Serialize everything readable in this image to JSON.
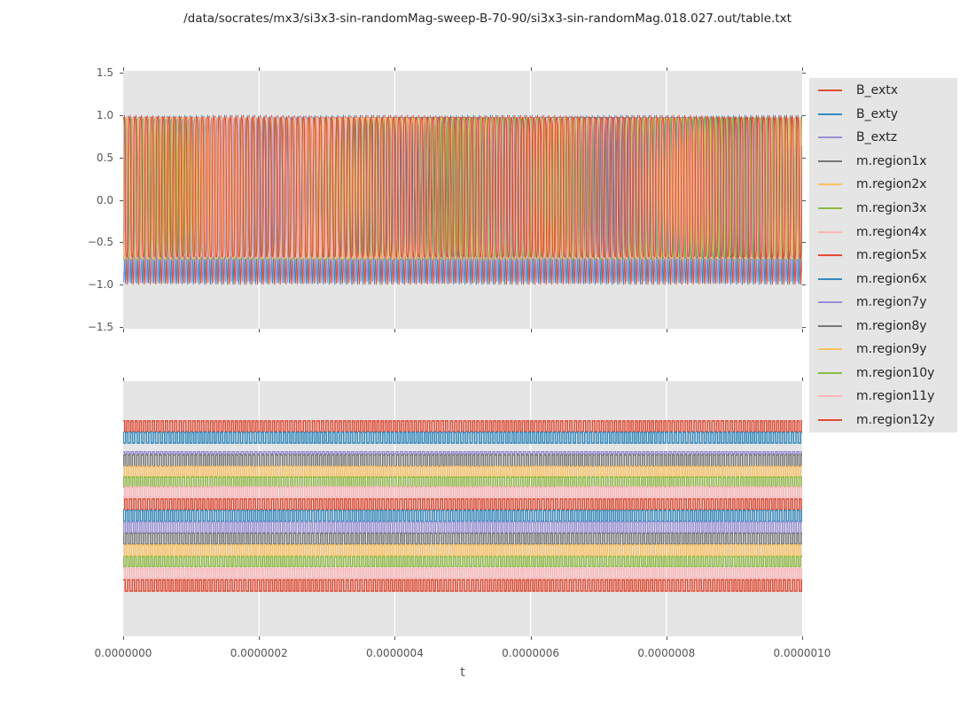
{
  "title": "/data/socrates/mx3/si3x3-sin-randomMag-sweep-B-70-90/si3x3-sin-randomMag.018.027.out/table.txt",
  "colors": {
    "figure_bg": "#FFFFFF",
    "axes_bg": "#E5E5E5",
    "grid": "#FFFFFF",
    "tick": "#555555",
    "text": "#262626",
    "palette": [
      "#E24A33",
      "#348ABD",
      "#988ED5",
      "#777777",
      "#FBC15E",
      "#8EBA42",
      "#FFB5B8"
    ]
  },
  "legend": {
    "position": "upper-right-outside",
    "entries": [
      {
        "label": "B_extx",
        "color": "#E24A33"
      },
      {
        "label": "B_exty",
        "color": "#348ABD"
      },
      {
        "label": "B_extz",
        "color": "#988ED5"
      },
      {
        "label": "m.region1x",
        "color": "#777777"
      },
      {
        "label": "m.region2x",
        "color": "#FBC15E"
      },
      {
        "label": "m.region3x",
        "color": "#8EBA42"
      },
      {
        "label": "m.region4x",
        "color": "#FFB5B8"
      },
      {
        "label": "m.region5x",
        "color": "#E24A33"
      },
      {
        "label": "m.region6x",
        "color": "#348ABD"
      },
      {
        "label": "m.region7y",
        "color": "#988ED5"
      },
      {
        "label": "m.region8y",
        "color": "#777777"
      },
      {
        "label": "m.region9y",
        "color": "#FBC15E"
      },
      {
        "label": "m.region10y",
        "color": "#8EBA42"
      },
      {
        "label": "m.region11y",
        "color": "#FFB5B8"
      },
      {
        "label": "m.region12y",
        "color": "#E24A33"
      }
    ]
  },
  "chart_data": [
    {
      "type": "line",
      "subplot": "top",
      "xlabel": "",
      "ylabel": "",
      "xlim": [
        0,
        1e-06
      ],
      "ylim": [
        -1.525,
        1.525
      ],
      "grid": "vertical-only",
      "yticks": {
        "values": [
          1.5,
          1.0,
          0.5,
          0.0,
          -0.5,
          -1.0,
          -1.5
        ],
        "labels": [
          "1.5",
          "1.0",
          "0.5",
          "0.0",
          "−0.5",
          "−1.0",
          "−1.5"
        ]
      },
      "description": "15 overlapping oscillations vs t over 0..1e-6 s; B_ext traces are sines of amplitude 1.0, m.region traces are squared-off sines spanning about -0.68..0.97; freq is cycles per full x-range",
      "series": [
        {
          "name": "B_extx",
          "color": "#E24A33",
          "shape": "sine",
          "freq": 120.0,
          "phase": 0.0,
          "amp": 1.0,
          "offset": 0.0
        },
        {
          "name": "B_exty",
          "color": "#348ABD",
          "shape": "sine",
          "freq": 120.0,
          "phase": 2.09,
          "amp": 1.0,
          "offset": 0.0
        },
        {
          "name": "B_extz",
          "color": "#988ED5",
          "shape": "sine",
          "freq": 120.0,
          "phase": 4.19,
          "amp": 0.98,
          "offset": 0.0
        },
        {
          "name": "m.region1x",
          "color": "#777777",
          "shape": "squash",
          "freq": 119.2,
          "phase": 0.7,
          "amp": 0.83,
          "offset": 0.145
        },
        {
          "name": "m.region2x",
          "color": "#FBC15E",
          "shape": "squash",
          "freq": 121.1,
          "phase": 3.9,
          "amp": 0.82,
          "offset": 0.15
        },
        {
          "name": "m.region3x",
          "color": "#8EBA42",
          "shape": "squash",
          "freq": 118.6,
          "phase": 1.6,
          "amp": 0.84,
          "offset": 0.13
        },
        {
          "name": "m.region4x",
          "color": "#FFB5B8",
          "shape": "squash",
          "freq": 120.7,
          "phase": 5.2,
          "amp": 0.815,
          "offset": 0.155
        },
        {
          "name": "m.region5x",
          "color": "#E24A33",
          "shape": "squash",
          "freq": 119.6,
          "phase": 2.8,
          "amp": 0.835,
          "offset": 0.14
        },
        {
          "name": "m.region6x",
          "color": "#348ABD",
          "shape": "squash",
          "freq": 121.5,
          "phase": 0.3,
          "amp": 0.825,
          "offset": 0.145
        },
        {
          "name": "m.region7y",
          "color": "#988ED5",
          "shape": "squash",
          "freq": 118.9,
          "phase": 4.6,
          "amp": 0.83,
          "offset": 0.125
        },
        {
          "name": "m.region8y",
          "color": "#777777",
          "shape": "squash",
          "freq": 120.3,
          "phase": 1.1,
          "amp": 0.82,
          "offset": 0.15
        },
        {
          "name": "m.region9y",
          "color": "#FBC15E",
          "shape": "squash",
          "freq": 119.0,
          "phase": 3.3,
          "amp": 0.835,
          "offset": 0.135
        },
        {
          "name": "m.region10y",
          "color": "#8EBA42",
          "shape": "squash",
          "freq": 121.8,
          "phase": 5.8,
          "amp": 0.82,
          "offset": 0.145
        },
        {
          "name": "m.region11y",
          "color": "#FFB5B8",
          "shape": "squash",
          "freq": 118.4,
          "phase": 2.2,
          "amp": 0.83,
          "offset": 0.14
        },
        {
          "name": "m.region12y",
          "color": "#E24A33",
          "shape": "squash",
          "freq": 120.9,
          "phase": 0.9,
          "amp": 0.825,
          "offset": 0.15
        }
      ]
    },
    {
      "type": "line",
      "subplot": "bottom",
      "xlabel": "t",
      "ylabel": "",
      "xlim": [
        0,
        1e-06
      ],
      "grid": "vertical-only",
      "xticks": {
        "values": [
          0.0,
          2e-07,
          4e-07,
          6e-07,
          8e-07,
          1e-06
        ],
        "labels": [
          "0.0000000",
          "0.0000002",
          "0.0000004",
          "0.0000006",
          "0.0000008",
          "0.0000010"
        ]
      },
      "description": "15 stacked square-wave pulse trains vs t; hi/lo are fractions of plot height measured from the top edge; freq is cycles per full x-range; phase-modulation terms create irregular pulse widths",
      "series": [
        {
          "name": "B_extx",
          "color": "#E24A33",
          "hi": 0.156,
          "lo": 0.198,
          "freq": 158.0,
          "phase": 0.0,
          "modf": 5.1,
          "modphase": 0.5
        },
        {
          "name": "B_exty",
          "color": "#348ABD",
          "hi": 0.201,
          "lo": 0.243,
          "freq": 157.2,
          "phase": 1.3,
          "modf": 6.2,
          "modphase": 2.0
        },
        {
          "name": "B_extz",
          "color": "#988ED5",
          "hi": 0.277,
          "lo": 0.285,
          "freq": 158.6,
          "phase": 2.6,
          "modf": 4.7,
          "modphase": 4.1
        },
        {
          "name": "m.region1x",
          "color": "#777777",
          "hi": 0.289,
          "lo": 0.333,
          "freq": 157.7,
          "phase": 3.9,
          "modf": 5.8,
          "modphase": 1.2
        },
        {
          "name": "m.region2x",
          "color": "#FBC15E",
          "hi": 0.334,
          "lo": 0.375,
          "freq": 158.9,
          "phase": 5.1,
          "modf": 4.3,
          "modphase": 3.3
        },
        {
          "name": "m.region3x",
          "color": "#8EBA42",
          "hi": 0.376,
          "lo": 0.414,
          "freq": 157.4,
          "phase": 0.8,
          "modf": 6.6,
          "modphase": 5.0
        },
        {
          "name": "m.region4x",
          "color": "#FFB5B8",
          "hi": 0.414,
          "lo": 0.455,
          "freq": 158.3,
          "phase": 2.1,
          "modf": 5.4,
          "modphase": 0.9
        },
        {
          "name": "m.region5x",
          "color": "#E24A33",
          "hi": 0.462,
          "lo": 0.503,
          "freq": 157.9,
          "phase": 3.4,
          "modf": 4.9,
          "modphase": 2.6
        },
        {
          "name": "m.region6x",
          "color": "#348ABD",
          "hi": 0.507,
          "lo": 0.549,
          "freq": 158.7,
          "phase": 4.7,
          "modf": 6.1,
          "modphase": 4.4
        },
        {
          "name": "m.region7y",
          "color": "#988ED5",
          "hi": 0.552,
          "lo": 0.594,
          "freq": 157.1,
          "phase": 5.9,
          "modf": 5.6,
          "modphase": 0.2
        },
        {
          "name": "m.region8y",
          "color": "#777777",
          "hi": 0.597,
          "lo": 0.639,
          "freq": 158.4,
          "phase": 1.0,
          "modf": 4.5,
          "modphase": 1.9
        },
        {
          "name": "m.region9y",
          "color": "#FBC15E",
          "hi": 0.642,
          "lo": 0.684,
          "freq": 157.6,
          "phase": 2.4,
          "modf": 6.4,
          "modphase": 3.7
        },
        {
          "name": "m.region10y",
          "color": "#8EBA42",
          "hi": 0.688,
          "lo": 0.726,
          "freq": 158.8,
          "phase": 3.6,
          "modf": 5.2,
          "modphase": 5.4
        },
        {
          "name": "m.region11y",
          "color": "#FFB5B8",
          "hi": 0.733,
          "lo": 0.771,
          "freq": 157.3,
          "phase": 4.9,
          "modf": 4.8,
          "modphase": 1.6
        },
        {
          "name": "m.region12y",
          "color": "#E24A33",
          "hi": 0.778,
          "lo": 0.823,
          "freq": 158.1,
          "phase": 0.2,
          "modf": 6.0,
          "modphase": 3.0
        }
      ]
    }
  ]
}
